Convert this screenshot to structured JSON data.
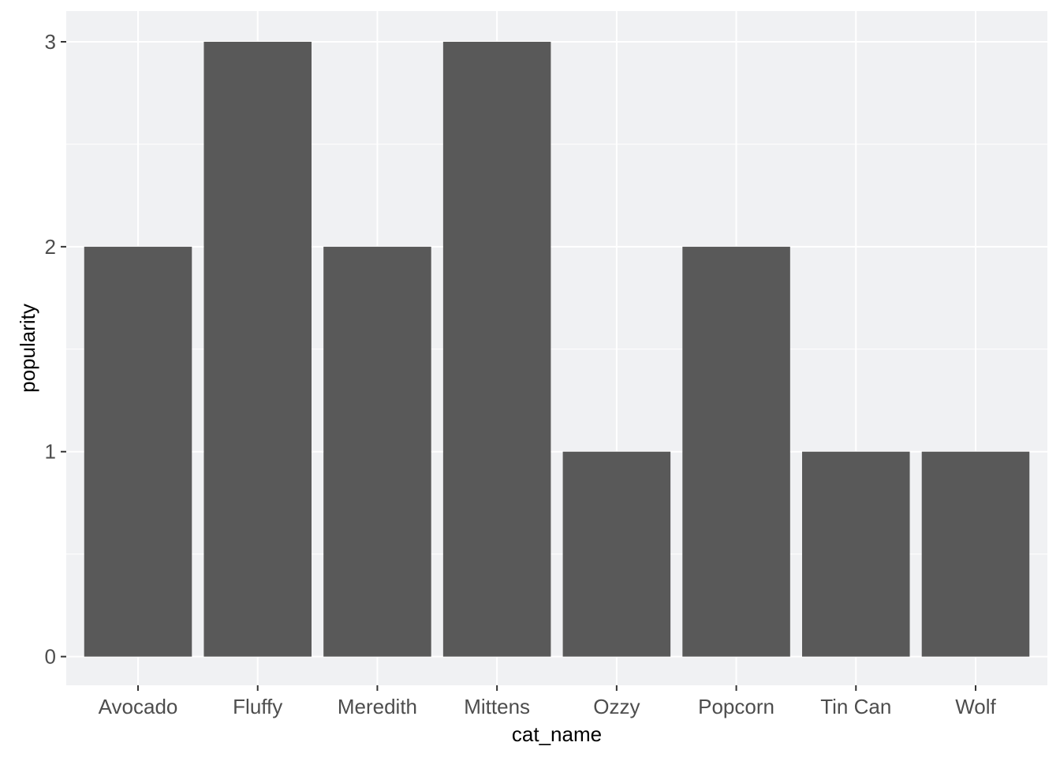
{
  "chart_data": {
    "type": "bar",
    "title": "",
    "xlabel": "cat_name",
    "ylabel": "popularity",
    "categories": [
      "Avocado",
      "Fluffy",
      "Meredith",
      "Mittens",
      "Ozzy",
      "Popcorn",
      "Tin Can",
      "Wolf"
    ],
    "values": [
      2,
      3,
      2,
      3,
      1,
      2,
      1,
      1
    ],
    "ylim": [
      0,
      3
    ],
    "yticks": [
      "0",
      "1",
      "2",
      "3"
    ],
    "grid": true,
    "legend": "none"
  },
  "colors": {
    "bar": "#595959",
    "panel_background": "#f0f1f3",
    "grid_line": "#ffffff",
    "tick_text": "#4d4d4d",
    "axis_title": "#000000",
    "tick_mark": "#333333"
  }
}
